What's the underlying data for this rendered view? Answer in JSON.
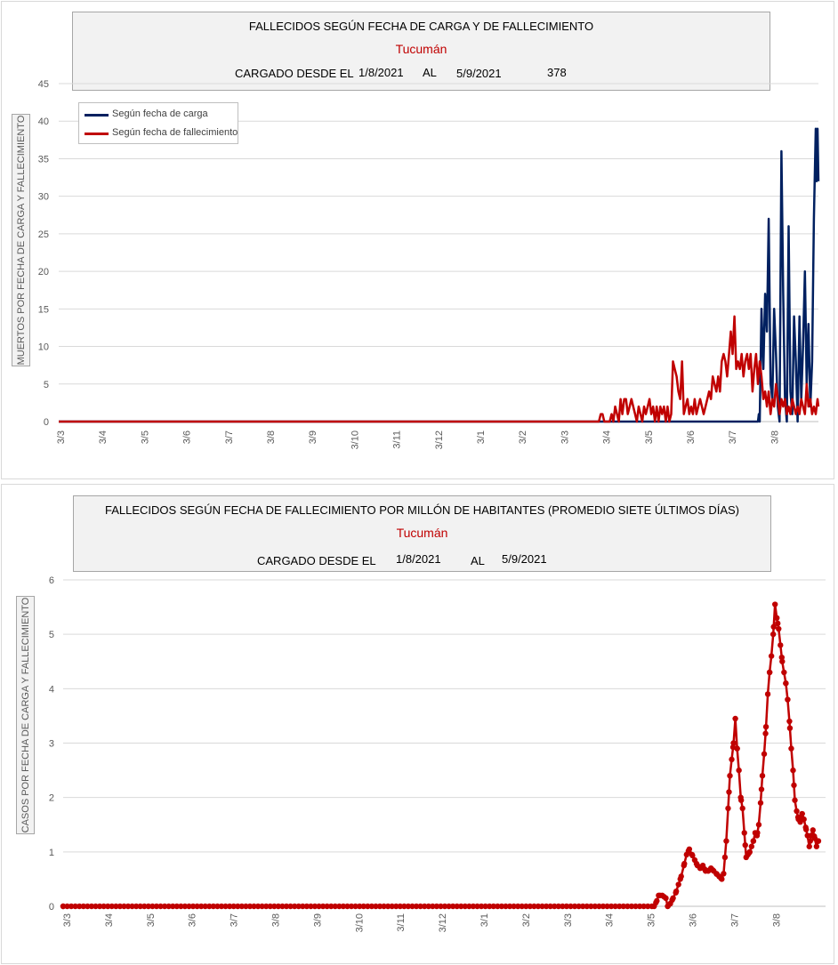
{
  "chart_data": [
    {
      "type": "line",
      "title": "FALLECIDOS SEGÚN FECHA DE CARGA Y DE FALLECIMIENTO",
      "subtitle": "Tucumán",
      "loaded_label": "CARGADO DESDE EL",
      "from_date": "1/8/2021",
      "to_label": "AL",
      "to_date": "5/9/2021",
      "total": "378",
      "ylabel": "MUERTOS POR FECHA DE CARGA Y FALLECIMIENTO",
      "ylim": [
        0,
        45
      ],
      "yticks": [
        "0",
        "5",
        "10",
        "15",
        "20",
        "25",
        "30",
        "35",
        "40",
        "45"
      ],
      "xticks": [
        "3/3",
        "3/4",
        "3/5",
        "3/6",
        "3/7",
        "3/8",
        "3/9",
        "3/10",
        "3/11",
        "3/12",
        "3/1",
        "3/2",
        "3/3",
        "3/4",
        "3/5",
        "3/6",
        "3/7",
        "3/8"
      ],
      "grid": true,
      "legend_position": "top-left",
      "series": [
        {
          "name": "Según fecha de carga",
          "color": "#002060",
          "points": [
            [
              0,
              0
            ],
            [
              760,
              0
            ],
            [
              774,
              0
            ],
            [
              775,
              1
            ],
            [
              776,
              0
            ],
            [
              778,
              15
            ],
            [
              780,
              7
            ],
            [
              782,
              17
            ],
            [
              784,
              12
            ],
            [
              786,
              27
            ],
            [
              788,
              5
            ],
            [
              790,
              3
            ],
            [
              792,
              15
            ],
            [
              794,
              9
            ],
            [
              796,
              2
            ],
            [
              798,
              0
            ],
            [
              800,
              36
            ],
            [
              802,
              17
            ],
            [
              804,
              3
            ],
            [
              806,
              0
            ],
            [
              808,
              26
            ],
            [
              810,
              4
            ],
            [
              812,
              1
            ],
            [
              814,
              14
            ],
            [
              816,
              8
            ],
            [
              818,
              0
            ],
            [
              820,
              14
            ],
            [
              822,
              3
            ],
            [
              824,
              10
            ],
            [
              826,
              20
            ],
            [
              828,
              5
            ],
            [
              830,
              13
            ],
            [
              832,
              2
            ],
            [
              834,
              8
            ],
            [
              836,
              27
            ],
            [
              838,
              39
            ],
            [
              839,
              32
            ],
            [
              840,
              39
            ],
            [
              841,
              32
            ]
          ]
        },
        {
          "name": "Según fecha de fallecimiento",
          "color": "#c00000",
          "points": [
            [
              0,
              0
            ],
            [
              598,
              0
            ],
            [
              600,
              1
            ],
            [
              602,
              1
            ],
            [
              604,
              0
            ],
            [
              610,
              0
            ],
            [
              612,
              1
            ],
            [
              614,
              0
            ],
            [
              616,
              2
            ],
            [
              618,
              1
            ],
            [
              620,
              0
            ],
            [
              622,
              3
            ],
            [
              624,
              1
            ],
            [
              626,
              3
            ],
            [
              628,
              3
            ],
            [
              630,
              1
            ],
            [
              632,
              2
            ],
            [
              634,
              3
            ],
            [
              636,
              2
            ],
            [
              638,
              1
            ],
            [
              640,
              0
            ],
            [
              642,
              2
            ],
            [
              644,
              1
            ],
            [
              646,
              0
            ],
            [
              648,
              2
            ],
            [
              650,
              1
            ],
            [
              652,
              2
            ],
            [
              654,
              3
            ],
            [
              656,
              1
            ],
            [
              658,
              2
            ],
            [
              660,
              0
            ],
            [
              662,
              2
            ],
            [
              664,
              0
            ],
            [
              666,
              2
            ],
            [
              668,
              1
            ],
            [
              670,
              2
            ],
            [
              672,
              0
            ],
            [
              674,
              2
            ],
            [
              676,
              0
            ],
            [
              678,
              1
            ],
            [
              680,
              8
            ],
            [
              682,
              7
            ],
            [
              684,
              6
            ],
            [
              686,
              4
            ],
            [
              688,
              3
            ],
            [
              690,
              8
            ],
            [
              692,
              1
            ],
            [
              694,
              2
            ],
            [
              696,
              3
            ],
            [
              698,
              1
            ],
            [
              700,
              2
            ],
            [
              702,
              1
            ],
            [
              704,
              3
            ],
            [
              706,
              1
            ],
            [
              708,
              2
            ],
            [
              710,
              3
            ],
            [
              712,
              2
            ],
            [
              714,
              1
            ],
            [
              716,
              2
            ],
            [
              718,
              3
            ],
            [
              720,
              4
            ],
            [
              722,
              3
            ],
            [
              724,
              6
            ],
            [
              726,
              5
            ],
            [
              728,
              4
            ],
            [
              730,
              6
            ],
            [
              732,
              4
            ],
            [
              734,
              8
            ],
            [
              736,
              9
            ],
            [
              738,
              8
            ],
            [
              740,
              6
            ],
            [
              742,
              9
            ],
            [
              744,
              12
            ],
            [
              746,
              9
            ],
            [
              748,
              14
            ],
            [
              750,
              7
            ],
            [
              752,
              8
            ],
            [
              754,
              7
            ],
            [
              756,
              9
            ],
            [
              758,
              6
            ],
            [
              760,
              8
            ],
            [
              762,
              9
            ],
            [
              764,
              7
            ],
            [
              766,
              9
            ],
            [
              768,
              4
            ],
            [
              770,
              7
            ],
            [
              772,
              9
            ],
            [
              774,
              5
            ],
            [
              776,
              8
            ],
            [
              778,
              6
            ],
            [
              780,
              3
            ],
            [
              782,
              4
            ],
            [
              784,
              2
            ],
            [
              786,
              4
            ],
            [
              788,
              1
            ],
            [
              790,
              3
            ],
            [
              792,
              2
            ],
            [
              794,
              5
            ],
            [
              796,
              3
            ],
            [
              798,
              1
            ],
            [
              800,
              3
            ],
            [
              802,
              2
            ],
            [
              804,
              3
            ],
            [
              806,
              1
            ],
            [
              808,
              2
            ],
            [
              810,
              1
            ],
            [
              812,
              3
            ],
            [
              814,
              2
            ],
            [
              816,
              1
            ],
            [
              818,
              2
            ],
            [
              820,
              1
            ],
            [
              822,
              3
            ],
            [
              824,
              2
            ],
            [
              826,
              1
            ],
            [
              828,
              5
            ],
            [
              830,
              2
            ],
            [
              832,
              3
            ],
            [
              834,
              1
            ],
            [
              836,
              2
            ],
            [
              838,
              1
            ],
            [
              840,
              3
            ],
            [
              841,
              2
            ]
          ]
        }
      ]
    },
    {
      "type": "line",
      "title": "FALLECIDOS SEGÚN FECHA DE FALLECIMIENTO POR MILLÓN DE HABITANTES (PROMEDIO SIETE ÚLTIMOS DÍAS)",
      "subtitle": "Tucumán",
      "loaded_label": "CARGADO DESDE EL",
      "from_date": "1/8/2021",
      "to_label": "AL",
      "to_date": "5/9/2021",
      "ylabel": "CASOS POR FECHA DE CARGA Y FALLECIMIENTO",
      "ylim": [
        0,
        6
      ],
      "yticks": [
        "0",
        "1",
        "2",
        "3",
        "4",
        "5",
        "6"
      ],
      "xticks": [
        "3/3",
        "3/4",
        "3/5",
        "3/6",
        "3/7",
        "3/8",
        "3/9",
        "3/10",
        "3/11",
        "3/12",
        "3/1",
        "3/2",
        "3/3",
        "3/4",
        "3/5",
        "3/6",
        "3/7",
        "3/8"
      ],
      "grid": true,
      "series": [
        {
          "name": "",
          "color": "#c00000",
          "marker": "circle",
          "points": [
            [
              0,
              0
            ],
            [
              655,
              0
            ],
            [
              658,
              0.1
            ],
            [
              660,
              0.2
            ],
            [
              664,
              0.2
            ],
            [
              668,
              0.15
            ],
            [
              670,
              0.0
            ],
            [
              673,
              0.05
            ],
            [
              676,
              0.15
            ],
            [
              679,
              0.25
            ],
            [
              682,
              0.4
            ],
            [
              685,
              0.55
            ],
            [
              688,
              0.75
            ],
            [
              691,
              0.95
            ],
            [
              694,
              1.05
            ],
            [
              697,
              0.95
            ],
            [
              700,
              0.85
            ],
            [
              703,
              0.75
            ],
            [
              706,
              0.7
            ],
            [
              709,
              0.75
            ],
            [
              712,
              0.65
            ],
            [
              715,
              0.65
            ],
            [
              718,
              0.7
            ],
            [
              721,
              0.65
            ],
            [
              724,
              0.6
            ],
            [
              727,
              0.55
            ],
            [
              730,
              0.5
            ],
            [
              732,
              0.6
            ],
            [
              735,
              1.2
            ],
            [
              737,
              1.8
            ],
            [
              739,
              2.4
            ],
            [
              741,
              2.7
            ],
            [
              743,
              3.0
            ],
            [
              745,
              3.45
            ],
            [
              747,
              2.9
            ],
            [
              749,
              2.5
            ],
            [
              751,
              2.0
            ],
            [
              753,
              1.8
            ],
            [
              755,
              1.35
            ],
            [
              757,
              0.9
            ],
            [
              759,
              0.95
            ],
            [
              761,
              1.0
            ],
            [
              763,
              1.1
            ],
            [
              765,
              1.2
            ],
            [
              767,
              1.35
            ],
            [
              769,
              1.3
            ],
            [
              771,
              1.5
            ],
            [
              773,
              1.9
            ],
            [
              775,
              2.4
            ],
            [
              777,
              2.8
            ],
            [
              779,
              3.3
            ],
            [
              781,
              3.9
            ],
            [
              783,
              4.3
            ],
            [
              785,
              4.6
            ],
            [
              787,
              5.0
            ],
            [
              789,
              5.55
            ],
            [
              791,
              5.3
            ],
            [
              793,
              5.1
            ],
            [
              795,
              4.8
            ],
            [
              797,
              4.5
            ],
            [
              799,
              4.3
            ],
            [
              801,
              4.1
            ],
            [
              803,
              3.8
            ],
            [
              805,
              3.4
            ],
            [
              807,
              2.9
            ],
            [
              809,
              2.5
            ],
            [
              811,
              1.95
            ],
            [
              813,
              1.75
            ],
            [
              815,
              1.6
            ],
            [
              817,
              1.55
            ],
            [
              819,
              1.7
            ],
            [
              821,
              1.6
            ],
            [
              823,
              1.45
            ],
            [
              825,
              1.3
            ],
            [
              827,
              1.1
            ],
            [
              829,
              1.3
            ],
            [
              831,
              1.4
            ],
            [
              833,
              1.25
            ],
            [
              835,
              1.1
            ],
            [
              837,
              1.2
            ]
          ]
        }
      ]
    }
  ]
}
